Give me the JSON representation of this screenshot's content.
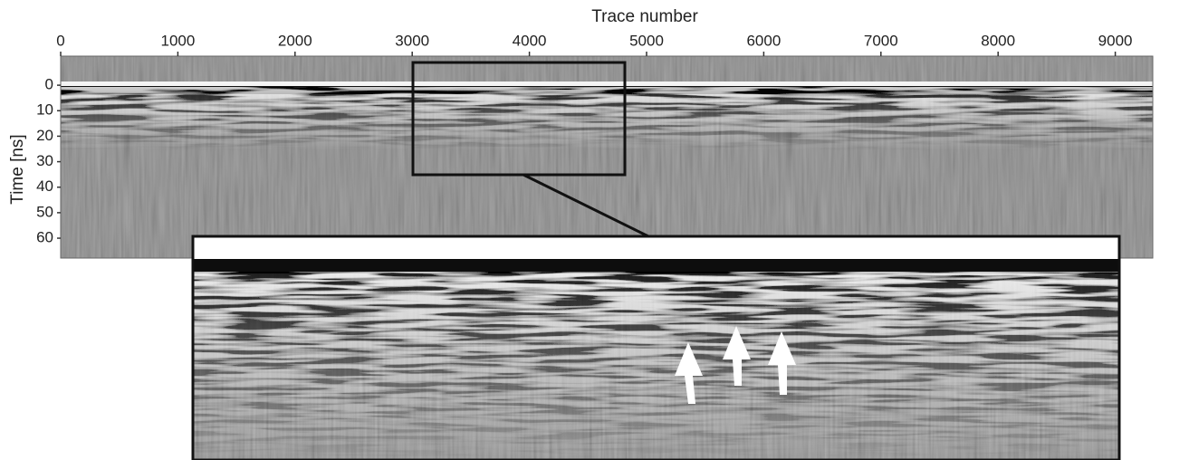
{
  "chart_data": {
    "type": "radargram",
    "x_label": "Trace number",
    "y_label": "Time [ns]",
    "xlim": [
      0,
      9320
    ],
    "ylim": [
      -11.4,
      67.8
    ],
    "y_inverted": true,
    "xticks": [
      0,
      1000,
      2000,
      3000,
      4000,
      5000,
      6000,
      7000,
      8000,
      9000
    ],
    "yticks": [
      0,
      10,
      20,
      30,
      40,
      50,
      60
    ]
  }
}
